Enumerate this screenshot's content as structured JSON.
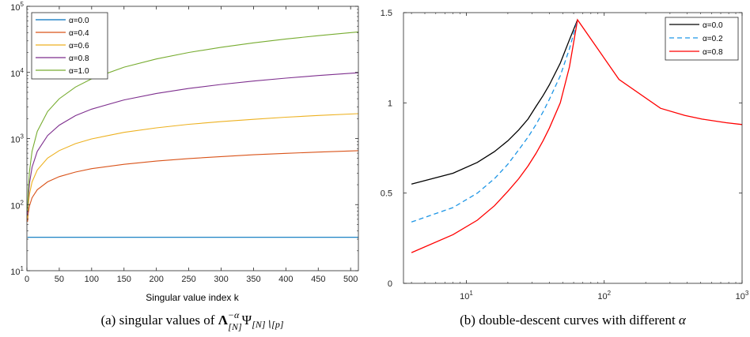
{
  "chart_data": [
    {
      "id": "a",
      "type": "line",
      "caption_prefix": "(a) singular values of ",
      "caption_math": {
        "base": "Λ",
        "sup": "−α",
        "sub": "[N]",
        "psi": "Ψ",
        "psi_sub": "[N]∖[p]"
      },
      "xlabel": "Singular value index k",
      "ylabel": "",
      "xlim": [
        0,
        512
      ],
      "ylim": [
        10,
        100000
      ],
      "yscale": "log",
      "grid": false,
      "legend_position": "top-left",
      "xticks": [
        "0",
        "50",
        "100",
        "150",
        "200",
        "250",
        "300",
        "350",
        "400",
        "450",
        "500"
      ],
      "xtick_values": [
        0,
        50,
        100,
        150,
        200,
        250,
        300,
        350,
        400,
        450,
        500
      ],
      "yticks": [
        {
          "base": "10",
          "exp": "1"
        },
        {
          "base": "10",
          "exp": "2"
        },
        {
          "base": "10",
          "exp": "3"
        },
        {
          "base": "10",
          "exp": "4"
        },
        {
          "base": "10",
          "exp": "5"
        }
      ],
      "ytick_values": [
        10,
        100,
        1000,
        10000,
        100000
      ],
      "x": [
        1,
        2,
        4,
        8,
        16,
        32,
        50,
        75,
        100,
        150,
        200,
        250,
        300,
        350,
        400,
        450,
        512
      ],
      "series": [
        {
          "name": "α=0.0",
          "color": "#0072BD",
          "values": [
            32,
            32,
            32,
            32,
            32,
            32,
            32,
            32,
            32,
            32,
            32,
            32,
            32,
            32,
            32,
            32,
            32
          ]
        },
        {
          "name": "α=0.4",
          "color": "#D95319",
          "values": [
            55,
            73,
            96,
            127,
            168,
            221,
            265,
            311,
            350,
            407,
            455,
            497,
            533,
            567,
            597,
            624,
            655
          ]
        },
        {
          "name": "α=0.6",
          "color": "#EDB120",
          "values": [
            62,
            95,
            145,
            220,
            334,
            505,
            656,
            837,
            987,
            1240,
            1450,
            1640,
            1800,
            1950,
            2100,
            2230,
            2380
          ]
        },
        {
          "name": "α=0.8",
          "color": "#7E2F8E",
          "values": [
            70,
            121,
            211,
            367,
            639,
            1110,
            1590,
            2220,
            2780,
            3840,
            4810,
            5720,
            6580,
            7410,
            8200,
            8970,
            9880
          ]
        },
        {
          "name": "α=1.0",
          "color": "#77AC30",
          "values": [
            80,
            160,
            320,
            640,
            1280,
            2560,
            4000,
            6000,
            8000,
            12000,
            16000,
            20000,
            24000,
            28000,
            32000,
            36000,
            41000
          ]
        }
      ]
    },
    {
      "id": "b",
      "type": "line",
      "caption_prefix": "(b) double-descent curves with different ",
      "caption_alpha": "α",
      "xlabel": "",
      "ylabel": "",
      "xscale": "log",
      "xlim": [
        3.5,
        1000
      ],
      "ylim": [
        0,
        1.5
      ],
      "grid": false,
      "legend_position": "top-right",
      "xticks": [
        {
          "base": "10",
          "exp": "1"
        },
        {
          "base": "10",
          "exp": "2"
        },
        {
          "base": "10",
          "exp": "3"
        }
      ],
      "xtick_values": [
        10,
        100,
        1000
      ],
      "yticks": [
        "0",
        "0.5",
        "1",
        "1.5"
      ],
      "ytick_values": [
        0,
        0.5,
        1,
        1.5
      ],
      "series": [
        {
          "name": "α=0.0",
          "color": "#000000",
          "dash": "none",
          "x": [
            4,
            8,
            12,
            16,
            20,
            24,
            28,
            32,
            36,
            40,
            48,
            56,
            64
          ],
          "values": [
            0.55,
            0.61,
            0.67,
            0.73,
            0.79,
            0.85,
            0.91,
            0.98,
            1.04,
            1.1,
            1.22,
            1.35,
            1.46
          ]
        },
        {
          "name": "α=0.2",
          "color": "#1E96E6",
          "dash": "6,4",
          "x": [
            4,
            8,
            12,
            16,
            20,
            24,
            28,
            32,
            36,
            40,
            48,
            56,
            64
          ],
          "values": [
            0.34,
            0.42,
            0.5,
            0.58,
            0.66,
            0.74,
            0.81,
            0.88,
            0.95,
            1.02,
            1.15,
            1.3,
            1.46
          ]
        },
        {
          "name": "α=0.8",
          "color": "#FF0000",
          "dash": "none",
          "x": [
            4,
            8,
            12,
            16,
            20,
            24,
            28,
            32,
            36,
            40,
            48,
            56,
            64,
            128,
            256,
            384,
            512,
            768,
            1000
          ],
          "values": [
            0.17,
            0.27,
            0.35,
            0.43,
            0.51,
            0.58,
            0.65,
            0.72,
            0.79,
            0.86,
            1.0,
            1.2,
            1.46,
            1.13,
            0.97,
            0.93,
            0.91,
            0.89,
            0.88
          ]
        }
      ]
    }
  ]
}
